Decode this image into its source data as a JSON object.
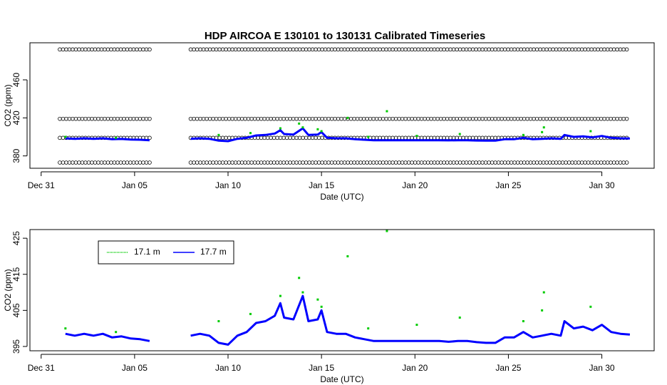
{
  "chart_data": [
    {
      "type": "scatter",
      "title": "HDP   AIRCOA  E   130101  to  130131   Calibrated Timeseries",
      "xlabel": "Date (UTC)",
      "ylabel": "CO2 (ppm)",
      "xlim": [
        -0.6,
        32.8
      ],
      "ylim": [
        367,
        499
      ],
      "xticks": [
        {
          "value": 0,
          "label": "Dec 31"
        },
        {
          "value": 5,
          "label": "Jan 05"
        },
        {
          "value": 10,
          "label": "Jan 10"
        },
        {
          "value": 15,
          "label": "Jan 15"
        },
        {
          "value": 20,
          "label": "Jan 20"
        },
        {
          "value": 25,
          "label": "Jan 25"
        },
        {
          "value": 30,
          "label": "Jan 30"
        }
      ],
      "yticks": [
        380,
        420,
        460
      ],
      "calibration": [
        {
          "value": 492,
          "color": "#000000",
          "runs": [
            [
              1.0,
              5.9
            ],
            [
              8.0,
              31.5
            ]
          ]
        },
        {
          "value": 419,
          "color": "#000000",
          "runs": [
            [
              1.0,
              5.9
            ],
            [
              8.0,
              31.5
            ]
          ]
        },
        {
          "value": 399,
          "color": "#000000",
          "runs": [
            [
              1.0,
              5.9
            ],
            [
              8.0,
              31.5
            ]
          ]
        },
        {
          "value": 373,
          "color": "#000000",
          "runs": [
            [
              1.0,
              5.9
            ],
            [
              8.0,
              31.5
            ]
          ]
        }
      ],
      "series": [
        {
          "color": "#00cc00",
          "style": "points",
          "x": [
            1.3,
            4.0,
            9.5,
            11.2,
            12.8,
            13.8,
            14.0,
            14.8,
            15.0,
            16.4,
            17.5,
            18.5,
            20.1,
            22.4,
            25.8,
            26.8,
            26.9,
            29.4
          ],
          "values": [
            400,
            399,
            402,
            404,
            409,
            414,
            410,
            408,
            406,
            420,
            400,
            427,
            401,
            403,
            402,
            405,
            410,
            406
          ]
        },
        {
          "color": "#0000ff",
          "style": "line",
          "x": [
            1.3,
            1.8,
            2.3,
            2.8,
            3.3,
            3.8,
            4.3,
            4.8,
            5.3,
            5.8,
            7.0,
            8.0,
            8.5,
            9.0,
            9.5,
            10.0,
            10.5,
            11.0,
            11.5,
            12.0,
            12.5,
            12.8,
            13.0,
            13.5,
            14.0,
            14.3,
            14.8,
            15.0,
            15.3,
            15.8,
            16.3,
            16.8,
            17.3,
            17.8,
            18.3,
            18.8,
            19.3,
            19.8,
            20.3,
            20.8,
            21.3,
            21.8,
            22.3,
            22.8,
            23.3,
            23.8,
            24.3,
            24.8,
            25.3,
            25.8,
            26.3,
            26.8,
            27.3,
            27.8,
            28.0,
            28.5,
            29.0,
            29.5,
            30.0,
            30.5,
            31.0,
            31.5
          ],
          "values": [
            398.5,
            398,
            398.5,
            398,
            398.5,
            397.5,
            397.8,
            397.2,
            397,
            396.5,
            null,
            398,
            398.5,
            398,
            396,
            395.5,
            398,
            399,
            401.5,
            402,
            403.5,
            407,
            403,
            402.5,
            409,
            402,
            402.5,
            405,
            399,
            398.5,
            398.5,
            397.5,
            397,
            396.5,
            396.5,
            396.5,
            396.5,
            396.5,
            396.5,
            396.5,
            396.5,
            396.3,
            396.5,
            396.5,
            396.2,
            396,
            396,
            397.5,
            397.5,
            399,
            397.5,
            398,
            398.5,
            398,
            402,
            400,
            400.5,
            399.5,
            401,
            399,
            398.5,
            398.3
          ]
        }
      ]
    },
    {
      "type": "scatter",
      "xlabel": "Date (UTC)",
      "ylabel": "CO2 (ppm)",
      "xlim": [
        -0.6,
        32.8
      ],
      "ylim": [
        393.8,
        427.4
      ],
      "xticks": [
        {
          "value": 0,
          "label": "Dec 31"
        },
        {
          "value": 5,
          "label": "Jan 05"
        },
        {
          "value": 10,
          "label": "Jan 10"
        },
        {
          "value": 15,
          "label": "Jan 15"
        },
        {
          "value": 20,
          "label": "Jan 20"
        },
        {
          "value": 25,
          "label": "Jan 25"
        },
        {
          "value": 30,
          "label": "Jan 30"
        }
      ],
      "yticks": [
        395,
        405,
        415,
        425
      ],
      "series": [
        {
          "name": "17.1 m",
          "color": "#00cc00",
          "style": "points",
          "x": [
            1.3,
            4.0,
            9.5,
            11.2,
            12.8,
            13.8,
            14.0,
            14.8,
            15.0,
            16.4,
            17.5,
            18.5,
            20.1,
            22.4,
            25.8,
            26.8,
            26.9,
            29.4
          ],
          "values": [
            400,
            399,
            402,
            404,
            409,
            414,
            410,
            408,
            406,
            420,
            400,
            427,
            401,
            403,
            402,
            405,
            410,
            406
          ]
        },
        {
          "name": "17.7 m",
          "color": "#0000ff",
          "style": "line",
          "x": [
            1.3,
            1.8,
            2.3,
            2.8,
            3.3,
            3.8,
            4.3,
            4.8,
            5.3,
            5.8,
            7.0,
            8.0,
            8.5,
            9.0,
            9.5,
            10.0,
            10.5,
            11.0,
            11.5,
            12.0,
            12.5,
            12.8,
            13.0,
            13.5,
            14.0,
            14.3,
            14.8,
            15.0,
            15.3,
            15.8,
            16.3,
            16.8,
            17.3,
            17.8,
            18.3,
            18.8,
            19.3,
            19.8,
            20.3,
            20.8,
            21.3,
            21.8,
            22.3,
            22.8,
            23.3,
            23.8,
            24.3,
            24.8,
            25.3,
            25.8,
            26.3,
            26.8,
            27.3,
            27.8,
            28.0,
            28.5,
            29.0,
            29.5,
            30.0,
            30.5,
            31.0,
            31.5
          ],
          "values": [
            398.5,
            398,
            398.5,
            398,
            398.5,
            397.5,
            397.8,
            397.2,
            397,
            396.5,
            null,
            398,
            398.5,
            398,
            396,
            395.5,
            398,
            399,
            401.5,
            402,
            403.5,
            407,
            403,
            402.5,
            409,
            402,
            402.5,
            405,
            399,
            398.5,
            398.5,
            397.5,
            397,
            396.5,
            396.5,
            396.5,
            396.5,
            396.5,
            396.5,
            396.5,
            396.5,
            396.3,
            396.5,
            396.5,
            396.2,
            396,
            396,
            397.5,
            397.5,
            399,
            397.5,
            398,
            398.5,
            398,
            402,
            400,
            400.5,
            399.5,
            401,
            399,
            398.5,
            398.3
          ]
        }
      ]
    }
  ]
}
